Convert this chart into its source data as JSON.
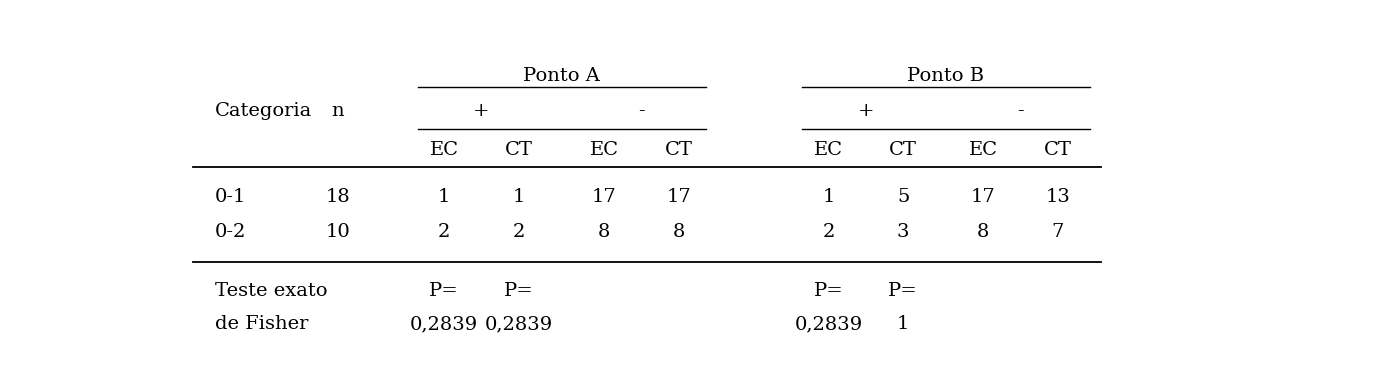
{
  "background_color": "#ffffff",
  "fig_width": 13.77,
  "fig_height": 3.84,
  "dpi": 100,
  "data_rows": [
    [
      "0-1",
      "18",
      "1",
      "1",
      "17",
      "17",
      "1",
      "5",
      "17",
      "13"
    ],
    [
      "0-2",
      "10",
      "2",
      "2",
      "8",
      "8",
      "2",
      "3",
      "8",
      "7"
    ]
  ],
  "fisher_label1": "Teste exato",
  "fisher_label2": "de Fisher",
  "fisher_p_labels": [
    "P=",
    "P=",
    "P=",
    "P="
  ],
  "fisher_p_values": [
    "0,2839",
    "0,2839",
    "0,2839",
    "1"
  ],
  "font_size": 14,
  "font_family": "DejaVu Serif"
}
